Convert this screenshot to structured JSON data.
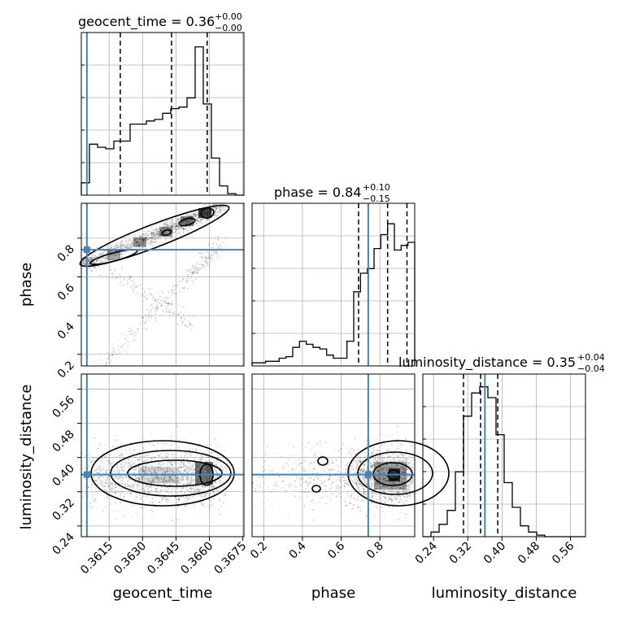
{
  "titles": {
    "geocent_time": {
      "label": "geocent_time = 0.36",
      "plus": "+0.00",
      "minus": "−0.00"
    },
    "phase": {
      "label": "phase = 0.84",
      "plus": "+0.10",
      "minus": "−0.15"
    },
    "luminosity_distance": {
      "label": "luminosity_distance = 0.35",
      "plus": "+0.04",
      "minus": "−0.04"
    }
  },
  "axis_labels": {
    "geocent_time": "geocent_time",
    "phase": "phase",
    "luminosity_distance": "luminosity_distance"
  },
  "colors": {
    "truth": "#4682b4",
    "hist": "#000000",
    "grid": "#b0b0b0"
  },
  "chart_data": {
    "type": "corner",
    "parameters": [
      "geocent_time",
      "phase",
      "luminosity_distance"
    ],
    "ranges": {
      "geocent_time": [
        0.36025,
        0.36755
      ],
      "phase": [
        0.14,
        0.98
      ],
      "luminosity_distance": [
        0.215,
        0.595
      ]
    },
    "ticks": {
      "geocent_time": [
        "0.3615",
        "0.3630",
        "0.3645",
        "0.3660",
        "0.3675"
      ],
      "phase": [
        "0.2",
        "0.4",
        "0.6",
        "0.8"
      ],
      "luminosity_distance": [
        "0.24",
        "0.32",
        "0.40",
        "0.48",
        "0.56"
      ]
    },
    "truths": {
      "geocent_time": 0.3605,
      "phase": 0.74,
      "luminosity_distance": 0.36
    },
    "quantiles": {
      "geocent_time": [
        0.362,
        0.3643,
        0.3659
      ],
      "phase": [
        0.69,
        0.84,
        0.94
      ],
      "luminosity_distance": [
        0.31,
        0.35,
        0.39
      ]
    },
    "histograms": {
      "geocent_time": {
        "edges_range": [
          0.36025,
          0.36755
        ],
        "counts": [
          0.08,
          0.33,
          0.31,
          0.3,
          0.35,
          0.35,
          0.46,
          0.46,
          0.48,
          0.49,
          0.53,
          0.56,
          0.57,
          0.63,
          0.96,
          0.59,
          0.24,
          0.06,
          0.01,
          0.0
        ]
      },
      "phase": {
        "edges_range": [
          0.14,
          0.98
        ],
        "counts": [
          0.02,
          0.02,
          0.03,
          0.03,
          0.05,
          0.06,
          0.12,
          0.16,
          0.14,
          0.12,
          0.11,
          0.07,
          0.05,
          0.05,
          0.16,
          0.48,
          0.6,
          0.63,
          0.76,
          0.85,
          0.92,
          0.75,
          0.78,
          0.8
        ]
      },
      "luminosity_distance": {
        "edges_range": [
          0.215,
          0.595
        ],
        "counts": [
          0.0,
          0.03,
          0.08,
          0.17,
          0.42,
          0.78,
          0.93,
          0.97,
          0.9,
          0.66,
          0.35,
          0.19,
          0.07,
          0.03,
          0.01,
          0.0,
          0.0,
          0.0,
          0.0,
          0.0
        ]
      }
    }
  }
}
